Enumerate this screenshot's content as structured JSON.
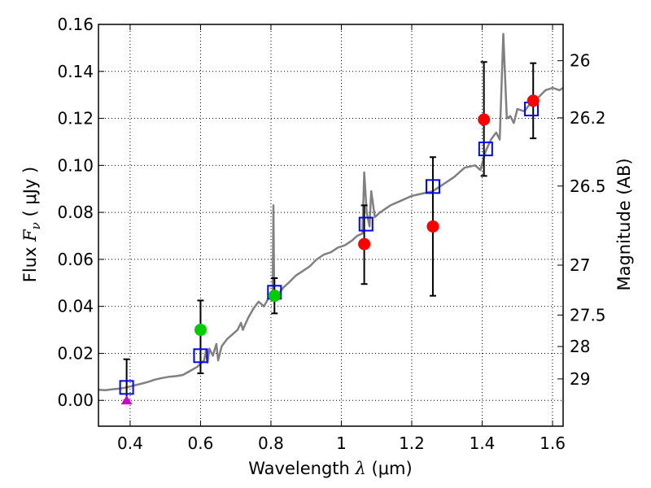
{
  "chart_data": {
    "type": "scatter",
    "xlabel_prefix": "Wavelength  ",
    "xlabel_symbol": "λ",
    "xlabel_unit": " (μm)",
    "ylabel_prefix": "Flux  ",
    "ylabel_symbol": "F",
    "ylabel_subscript": "ν",
    "ylabel_unit": "  ( μJy )",
    "y2label": "Magnitude (AB)",
    "xlim": [
      0.31,
      1.63
    ],
    "ylim": [
      -0.011,
      0.16
    ],
    "grid": true,
    "x_ticks": [
      {
        "value": 0.4,
        "label": "0.4"
      },
      {
        "value": 0.6,
        "label": "0.6"
      },
      {
        "value": 0.8,
        "label": "0.8"
      },
      {
        "value": 1.0,
        "label": "1"
      },
      {
        "value": 1.2,
        "label": "1.2"
      },
      {
        "value": 1.4,
        "label": "1.4"
      },
      {
        "value": 1.6,
        "label": "1.6"
      }
    ],
    "y_ticks": [
      {
        "value": 0.0,
        "label": "0.00"
      },
      {
        "value": 0.02,
        "label": "0.02"
      },
      {
        "value": 0.04,
        "label": "0.04"
      },
      {
        "value": 0.06,
        "label": "0.06"
      },
      {
        "value": 0.08,
        "label": "0.08"
      },
      {
        "value": 0.1,
        "label": "0.10"
      },
      {
        "value": 0.12,
        "label": "0.12"
      },
      {
        "value": 0.14,
        "label": "0.14"
      },
      {
        "value": 0.16,
        "label": "0.16"
      }
    ],
    "mag_ticks": [
      {
        "value": 26,
        "label": "26"
      },
      {
        "value": 26.2,
        "label": "26.2"
      },
      {
        "value": 26.5,
        "label": "26.5"
      },
      {
        "value": 27,
        "label": "27"
      },
      {
        "value": 27.5,
        "label": "27.5"
      },
      {
        "value": 28,
        "label": "28"
      },
      {
        "value": 29,
        "label": "29"
      }
    ],
    "colors": {
      "sed": "#808080",
      "model": "#0000ff",
      "red": "#ff0000",
      "green": "#00cc00",
      "magenta": "#cc00cc",
      "errorbar": "#000000",
      "grid": "#000000"
    },
    "sed_spectrum": [
      [
        0.31,
        0.0045
      ],
      [
        0.33,
        0.0043
      ],
      [
        0.35,
        0.0047
      ],
      [
        0.37,
        0.005
      ],
      [
        0.39,
        0.0055
      ],
      [
        0.41,
        0.0063
      ],
      [
        0.43,
        0.007
      ],
      [
        0.45,
        0.0078
      ],
      [
        0.47,
        0.0088
      ],
      [
        0.49,
        0.0095
      ],
      [
        0.51,
        0.01
      ],
      [
        0.53,
        0.0103
      ],
      [
        0.55,
        0.0108
      ],
      [
        0.57,
        0.0125
      ],
      [
        0.59,
        0.0142
      ],
      [
        0.61,
        0.017
      ],
      [
        0.615,
        0.021
      ],
      [
        0.62,
        0.016
      ],
      [
        0.625,
        0.022
      ],
      [
        0.635,
        0.019
      ],
      [
        0.645,
        0.024
      ],
      [
        0.65,
        0.017
      ],
      [
        0.66,
        0.023
      ],
      [
        0.675,
        0.026
      ],
      [
        0.69,
        0.028
      ],
      [
        0.705,
        0.03
      ],
      [
        0.715,
        0.033
      ],
      [
        0.72,
        0.03
      ],
      [
        0.735,
        0.035
      ],
      [
        0.75,
        0.039
      ],
      [
        0.765,
        0.042
      ],
      [
        0.78,
        0.04
      ],
      [
        0.795,
        0.044
      ],
      [
        0.805,
        0.046
      ],
      [
        0.807,
        0.083
      ],
      [
        0.809,
        0.046
      ],
      [
        0.82,
        0.045
      ],
      [
        0.835,
        0.048
      ],
      [
        0.85,
        0.05
      ],
      [
        0.87,
        0.053
      ],
      [
        0.89,
        0.055
      ],
      [
        0.91,
        0.057
      ],
      [
        0.93,
        0.06
      ],
      [
        0.95,
        0.062
      ],
      [
        0.97,
        0.063
      ],
      [
        0.99,
        0.065
      ],
      [
        1.01,
        0.066
      ],
      [
        1.03,
        0.068
      ],
      [
        1.045,
        0.07
      ],
      [
        1.06,
        0.071
      ],
      [
        1.065,
        0.097
      ],
      [
        1.072,
        0.08
      ],
      [
        1.08,
        0.074
      ],
      [
        1.085,
        0.089
      ],
      [
        1.095,
        0.078
      ],
      [
        1.11,
        0.08
      ],
      [
        1.14,
        0.083
      ],
      [
        1.17,
        0.085
      ],
      [
        1.2,
        0.087
      ],
      [
        1.23,
        0.088
      ],
      [
        1.26,
        0.089
      ],
      [
        1.29,
        0.092
      ],
      [
        1.32,
        0.095
      ],
      [
        1.35,
        0.099
      ],
      [
        1.38,
        0.1
      ],
      [
        1.395,
        0.098
      ],
      [
        1.41,
        0.106
      ],
      [
        1.425,
        0.111
      ],
      [
        1.44,
        0.114
      ],
      [
        1.45,
        0.111
      ],
      [
        1.46,
        0.156
      ],
      [
        1.47,
        0.12
      ],
      [
        1.48,
        0.121
      ],
      [
        1.49,
        0.118
      ],
      [
        1.5,
        0.124
      ],
      [
        1.52,
        0.123
      ],
      [
        1.54,
        0.127
      ],
      [
        1.56,
        0.129
      ],
      [
        1.58,
        0.132
      ],
      [
        1.6,
        0.133
      ],
      [
        1.62,
        0.132
      ],
      [
        1.63,
        0.133
      ]
    ],
    "model_points": [
      {
        "x": 0.39,
        "y": 0.0055
      },
      {
        "x": 0.6,
        "y": 0.019
      },
      {
        "x": 0.81,
        "y": 0.046
      },
      {
        "x": 1.07,
        "y": 0.075
      },
      {
        "x": 1.26,
        "y": 0.091
      },
      {
        "x": 1.41,
        "y": 0.107
      },
      {
        "x": 1.54,
        "y": 0.124
      }
    ],
    "observed_points": [
      {
        "x": 0.39,
        "y": 0.0,
        "err_low": 0.0,
        "err_high": 0.0175,
        "color": "magenta",
        "marker": "triangle"
      },
      {
        "x": 0.6,
        "y": 0.03,
        "err_low": 0.0115,
        "err_high": 0.0425,
        "color": "green",
        "marker": "circle"
      },
      {
        "x": 0.81,
        "y": 0.0445,
        "err_low": 0.037,
        "err_high": 0.052,
        "color": "green",
        "marker": "circle"
      },
      {
        "x": 1.065,
        "y": 0.0665,
        "err_low": 0.0495,
        "err_high": 0.083,
        "color": "red",
        "marker": "circle"
      },
      {
        "x": 1.26,
        "y": 0.074,
        "err_low": 0.0445,
        "err_high": 0.1035,
        "color": "red",
        "marker": "circle"
      },
      {
        "x": 1.405,
        "y": 0.1195,
        "err_low": 0.0955,
        "err_high": 0.144,
        "color": "red",
        "marker": "circle"
      },
      {
        "x": 1.545,
        "y": 0.1275,
        "err_low": 0.1115,
        "err_high": 0.1435,
        "color": "red",
        "marker": "circle"
      }
    ]
  }
}
